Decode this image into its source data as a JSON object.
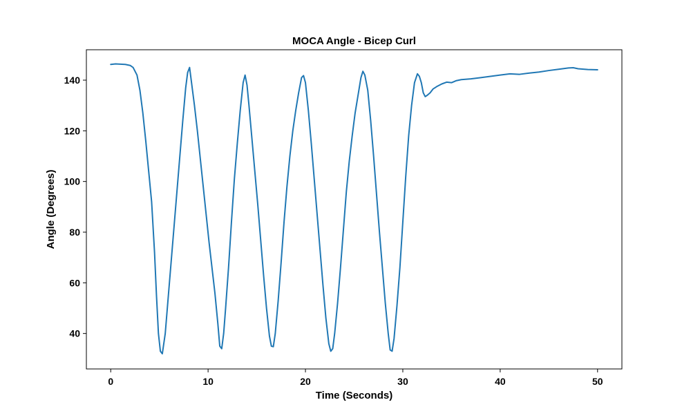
{
  "chart_data": {
    "type": "line",
    "title": "MOCA Angle - Bicep Curl",
    "xlabel": "Time (Seconds)",
    "ylabel": "Angle (Degrees)",
    "xlim": [
      -2.5,
      52.5
    ],
    "ylim": [
      26,
      152
    ],
    "xticks": [
      0,
      10,
      20,
      30,
      40,
      50
    ],
    "yticks": [
      40,
      60,
      80,
      100,
      120,
      140
    ],
    "xtick_labels": [
      "0",
      "10",
      "20",
      "30",
      "40",
      "50"
    ],
    "ytick_labels": [
      "40",
      "60",
      "80",
      "100",
      "120",
      "140"
    ],
    "grid": false,
    "series": [
      {
        "color": "#1f77b4",
        "x": [
          0,
          0.5,
          1,
          1.5,
          2,
          2.3,
          2.7,
          3.0,
          3.3,
          3.6,
          3.9,
          4.2,
          4.5,
          4.7,
          4.9,
          5.1,
          5.3,
          5.6,
          5.9,
          6.2,
          6.5,
          6.8,
          7.1,
          7.4,
          7.7,
          7.9,
          8.1,
          8.3,
          8.6,
          8.9,
          9.2,
          9.5,
          9.8,
          10.1,
          10.4,
          10.7,
          11.0,
          11.2,
          11.4,
          11.6,
          11.8,
          12.1,
          12.4,
          12.7,
          13.0,
          13.3,
          13.6,
          13.8,
          14.0,
          14.2,
          14.5,
          14.8,
          15.1,
          15.4,
          15.7,
          16.0,
          16.3,
          16.5,
          16.7,
          16.9,
          17.2,
          17.5,
          17.8,
          18.1,
          18.4,
          18.7,
          19.0,
          19.3,
          19.6,
          19.8,
          20.0,
          20.3,
          20.6,
          20.9,
          21.2,
          21.5,
          21.8,
          22.1,
          22.4,
          22.6,
          22.8,
          23.0,
          23.3,
          23.6,
          23.9,
          24.2,
          24.5,
          24.8,
          25.1,
          25.4,
          25.7,
          25.9,
          26.1,
          26.4,
          26.7,
          27.0,
          27.3,
          27.6,
          27.9,
          28.2,
          28.5,
          28.7,
          28.9,
          29.1,
          29.4,
          29.7,
          30.0,
          30.3,
          30.6,
          30.9,
          31.2,
          31.5,
          31.7,
          31.9,
          32.1,
          32.3,
          32.5,
          32.8,
          33.1,
          33.5,
          34,
          34.5,
          35,
          35.5,
          36,
          37,
          38,
          39,
          40,
          41,
          42,
          43,
          44,
          45,
          46,
          47,
          47.5,
          48,
          49,
          50
        ],
        "y": [
          146.2,
          146.4,
          146.3,
          146.2,
          145.8,
          145.0,
          142.0,
          136.0,
          127.0,
          116.0,
          104.0,
          92.0,
          72.0,
          55.0,
          40.0,
          33.0,
          32.0,
          40.0,
          54.0,
          68.0,
          82.0,
          96.0,
          110.0,
          124.0,
          137.0,
          143.0,
          145.0,
          139.0,
          130.0,
          120.0,
          109.0,
          98.0,
          87.0,
          76.0,
          66.0,
          56.0,
          44.0,
          35.0,
          34.0,
          40.0,
          50.0,
          66.0,
          84.0,
          101.0,
          115.0,
          128.0,
          139.0,
          142.0,
          138.0,
          130.0,
          117.0,
          104.0,
          91.0,
          77.0,
          63.0,
          50.0,
          39.0,
          35.0,
          34.8,
          40.0,
          53.0,
          68.0,
          84.0,
          98.0,
          110.0,
          120.0,
          128.0,
          135.0,
          141.0,
          141.8,
          139.0,
          128.0,
          115.0,
          101.0,
          87.0,
          73.0,
          59.0,
          46.0,
          36.0,
          33.0,
          34.0,
          40.0,
          52.0,
          66.0,
          81.0,
          96.0,
          108.0,
          118.0,
          127.0,
          134.0,
          141.0,
          143.5,
          142.0,
          136.0,
          124.0,
          110.0,
          95.0,
          80.0,
          66.0,
          52.0,
          40.0,
          33.5,
          33.0,
          38.0,
          51.0,
          66.0,
          84.0,
          102.0,
          118.0,
          130.0,
          139.0,
          142.5,
          141.5,
          139.0,
          135.0,
          133.5,
          134.0,
          135.0,
          136.5,
          137.5,
          138.5,
          139.2,
          139.0,
          139.8,
          140.2,
          140.5,
          141.0,
          141.5,
          142.0,
          142.5,
          142.3,
          142.8,
          143.2,
          143.8,
          144.3,
          144.8,
          144.9,
          144.5,
          144.2,
          144.1
        ]
      }
    ]
  }
}
